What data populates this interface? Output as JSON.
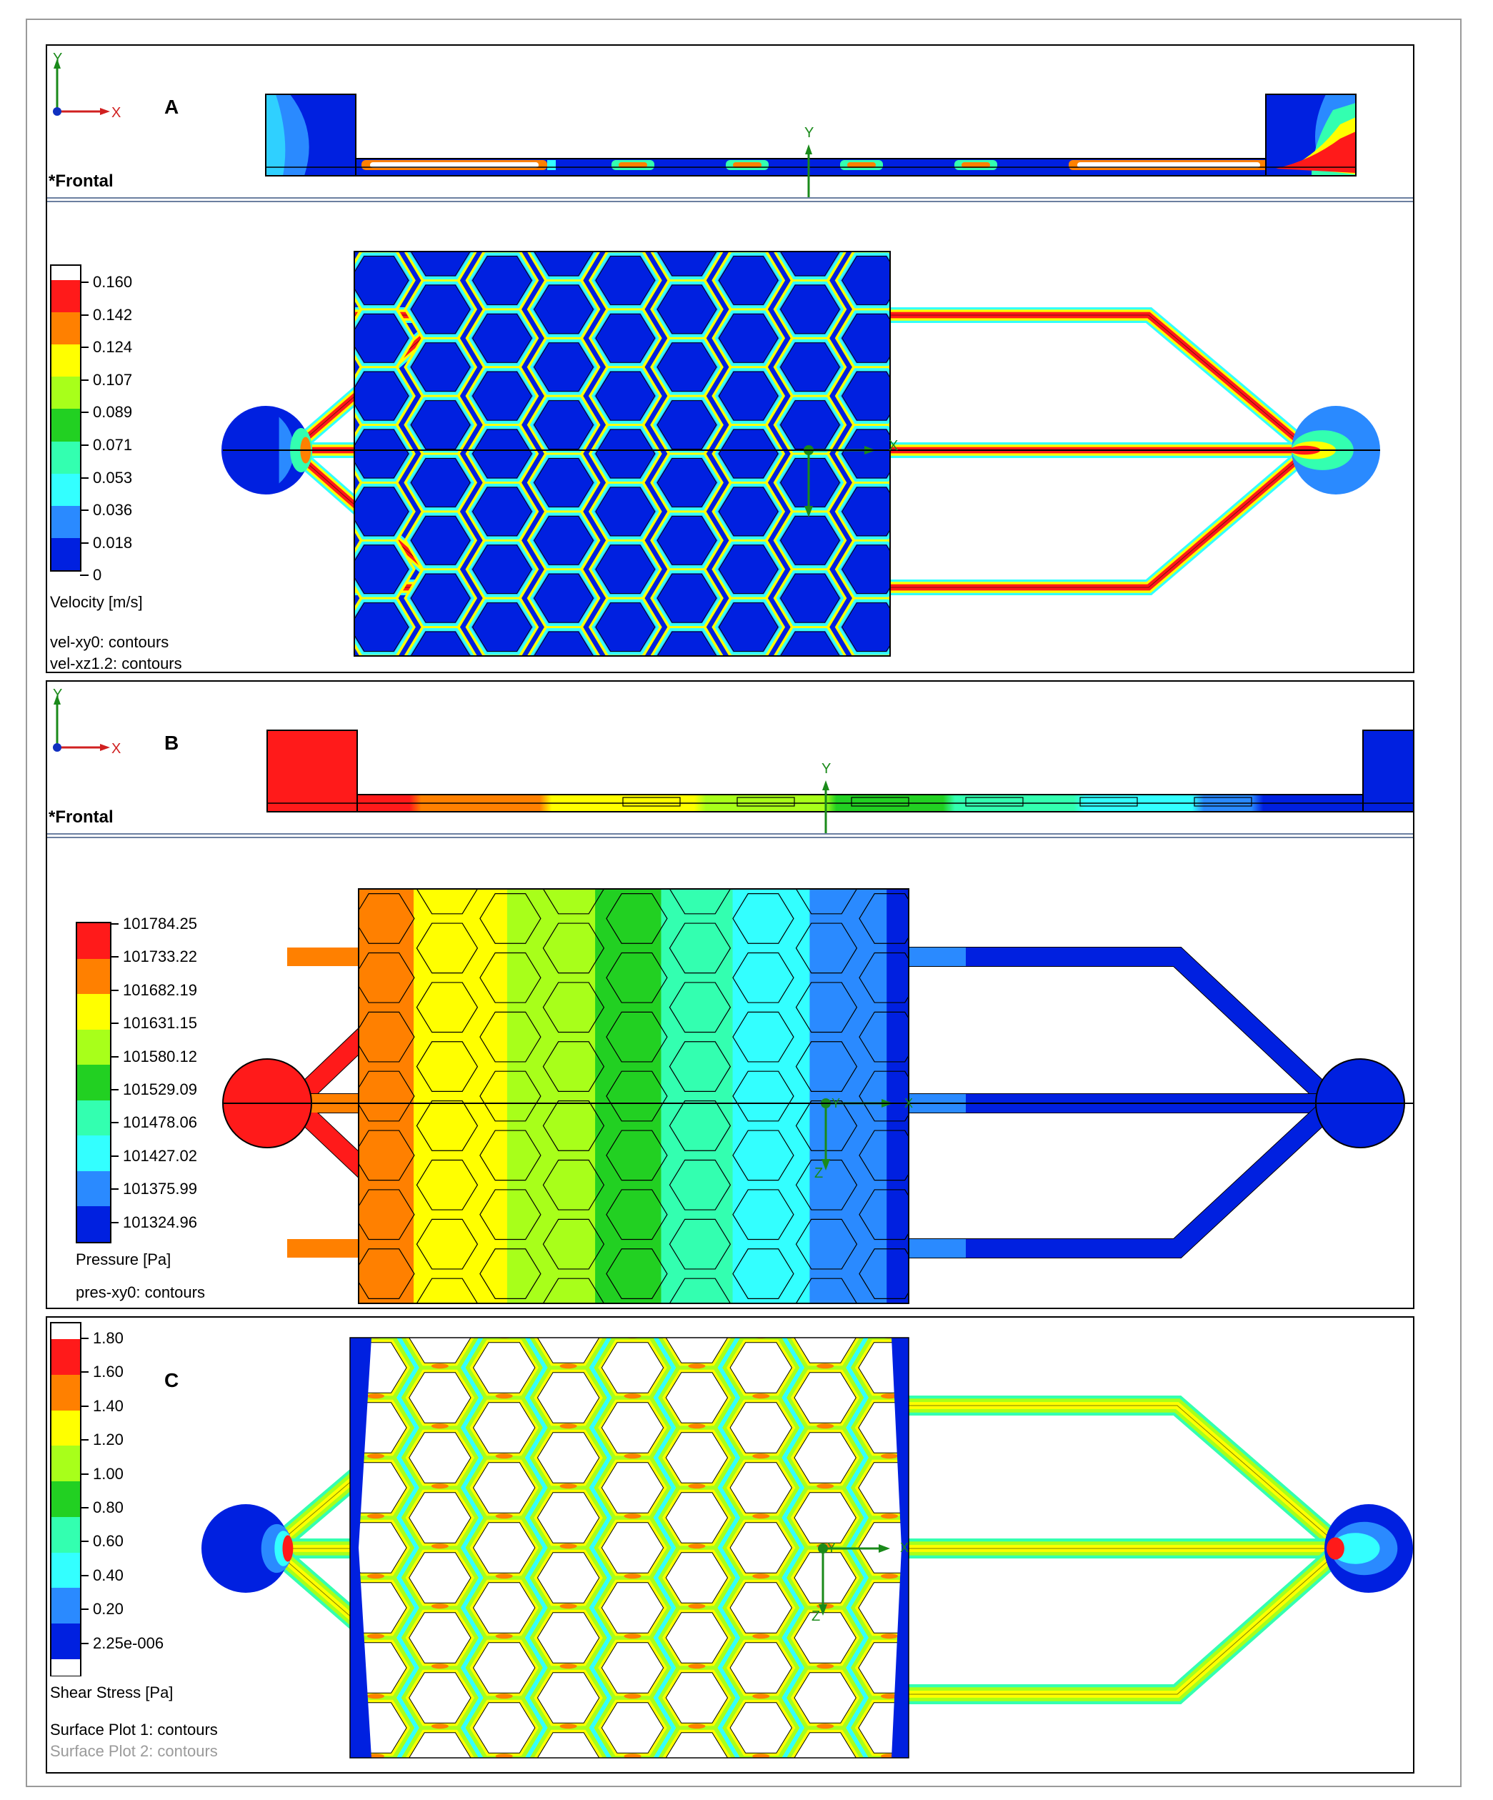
{
  "panels": [
    {
      "letter": "A",
      "view_label": "*Frontal",
      "top_axis": {
        "y": "Y",
        "x": "X"
      },
      "side_axis_label": "Y",
      "main_axes": {
        "x": "X",
        "z": "Z"
      },
      "legend": {
        "title": "Velocity [m/s]",
        "ticks": [
          "0.160",
          "0.142",
          "0.124",
          "0.107",
          "0.089",
          "0.071",
          "0.053",
          "0.036",
          "0.018",
          "0"
        ],
        "colors": [
          "#ffffff",
          "#ff1a1a",
          "#ff8000",
          "#ffff00",
          "#a8ff1a",
          "#22d022",
          "#33ffb0",
          "#33ffff",
          "#2a8aff",
          "#0020e0"
        ]
      },
      "notes": [
        "vel-xy0: contours",
        "vel-xz1.2: contours"
      ]
    },
    {
      "letter": "B",
      "view_label": "*Frontal",
      "top_axis": {
        "y": "Y",
        "x": "X"
      },
      "side_axis_label": "Y",
      "main_axes": {
        "x": "X",
        "y": "Y",
        "z": "Z"
      },
      "legend": {
        "title": "Pressure [Pa]",
        "ticks": [
          "101784.25",
          "101733.22",
          "101682.19",
          "101631.15",
          "101580.12",
          "101529.09",
          "101478.06",
          "101427.02",
          "101375.99",
          "101324.96"
        ],
        "colors": [
          "#ff1a1a",
          "#ff8000",
          "#ffff00",
          "#a8ff1a",
          "#22d022",
          "#33ffb0",
          "#33ffff",
          "#2a8aff",
          "#0020e0"
        ]
      },
      "notes": [
        "pres-xy0: contours"
      ]
    },
    {
      "letter": "C",
      "main_axes": {
        "x": "X",
        "y": "Y",
        "z": "Z"
      },
      "legend": {
        "title": "Shear Stress [Pa]",
        "ticks": [
          "1.80",
          "1.60",
          "1.40",
          "1.20",
          "1.00",
          "0.80",
          "0.60",
          "0.40",
          "0.20",
          "2.25e-006"
        ],
        "colors": [
          "#ffffff",
          "#ff1a1a",
          "#ff8000",
          "#ffff00",
          "#a8ff1a",
          "#22d022",
          "#33ffb0",
          "#33ffff",
          "#2a8aff",
          "#0020e0",
          "#ffffff"
        ]
      },
      "notes": [
        "Surface Plot 1: contours",
        "Surface Plot 2: contours"
      ]
    }
  ]
}
